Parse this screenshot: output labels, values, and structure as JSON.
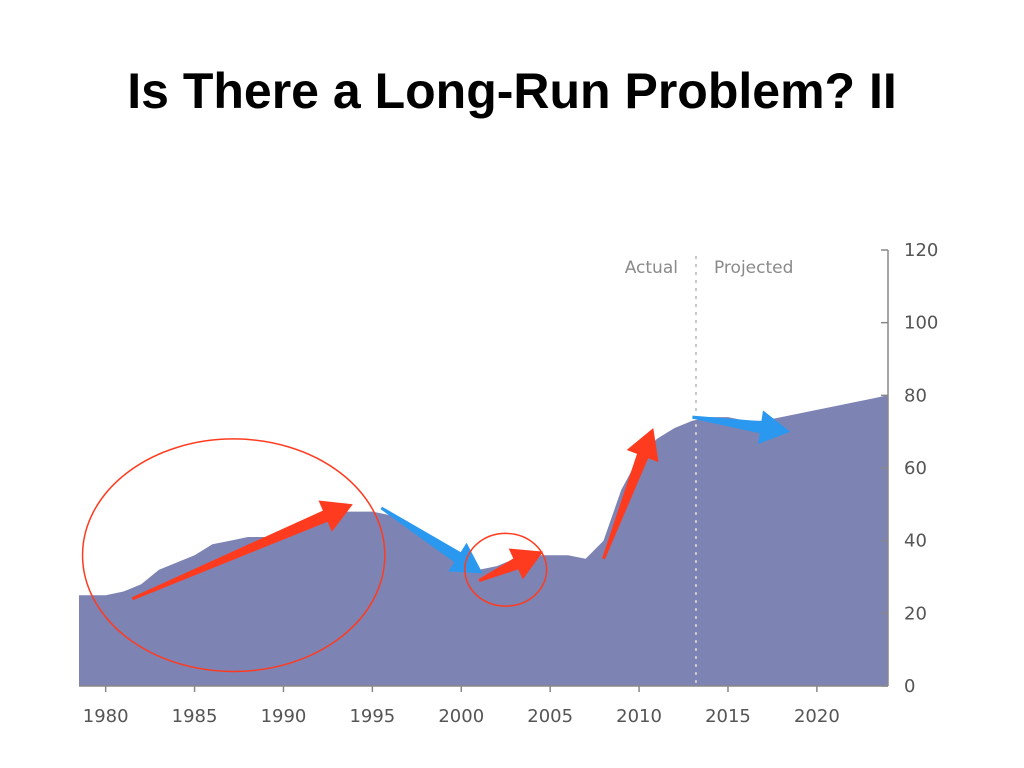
{
  "slide": {
    "title": "Is There a Long-Run Problem? II"
  },
  "chart_data": {
    "type": "area",
    "title": "",
    "xlabel": "",
    "ylabel": "",
    "x": [
      1980,
      1981,
      1982,
      1983,
      1984,
      1985,
      1986,
      1987,
      1988,
      1989,
      1990,
      1991,
      1992,
      1993,
      1994,
      1995,
      1996,
      1997,
      1998,
      1999,
      2000,
      2001,
      2002,
      2003,
      2004,
      2005,
      2006,
      2007,
      2008,
      2009,
      2010,
      2011,
      2012,
      2013,
      2014,
      2015,
      2016,
      2017,
      2018,
      2019,
      2020,
      2021,
      2022,
      2023,
      2024
    ],
    "series": [
      {
        "values": [
          25,
          26,
          28,
          32,
          34,
          36,
          39,
          40,
          41,
          41,
          42,
          44,
          46,
          48,
          48,
          48,
          47,
          44,
          40,
          37,
          33,
          32,
          33,
          35,
          36,
          36,
          36,
          35,
          40,
          54,
          63,
          68,
          71,
          73,
          74,
          74,
          73,
          73,
          74,
          75,
          76,
          77,
          78,
          79,
          80
        ],
        "color": "#7d83b3"
      }
    ],
    "xlim": [
      1978.5,
      2024
    ],
    "ylim": [
      0,
      120
    ],
    "x_ticks": [
      "1980",
      "1985",
      "1990",
      "1995",
      "2000",
      "2005",
      "2010",
      "2015",
      "2020"
    ],
    "y_ticks": [
      "0",
      "20",
      "40",
      "60",
      "80",
      "100",
      "120"
    ],
    "divider": {
      "x": 2013.2,
      "left_label": "Actual",
      "right_label": "Projected"
    },
    "y_axis_position": "right",
    "grid": false,
    "annotations": [
      {
        "kind": "arrow",
        "color": "#ff3b1f",
        "from": [
          1981.5,
          24
        ],
        "to": [
          1993.9,
          50
        ]
      },
      {
        "kind": "arrow",
        "color": "#2b98f0",
        "from": [
          1995.5,
          49
        ],
        "to": [
          2001.2,
          31
        ]
      },
      {
        "kind": "arrow",
        "color": "#ff3b1f",
        "from": [
          2001.0,
          29
        ],
        "to": [
          2004.6,
          37
        ]
      },
      {
        "kind": "arrow",
        "color": "#ff3b1f",
        "from": [
          2008.0,
          35
        ],
        "to": [
          2010.8,
          71
        ]
      },
      {
        "kind": "arrow",
        "color": "#2b98f0",
        "from": [
          2013.0,
          74
        ],
        "to": [
          2018.5,
          70
        ]
      },
      {
        "kind": "ellipse",
        "color": "#ff3b1f",
        "center": [
          1987.2,
          36
        ],
        "radii": [
          8.5,
          32
        ]
      },
      {
        "kind": "ellipse",
        "color": "#ff3b1f",
        "center": [
          2002.5,
          32
        ],
        "radii": [
          2.3,
          10
        ]
      }
    ]
  }
}
